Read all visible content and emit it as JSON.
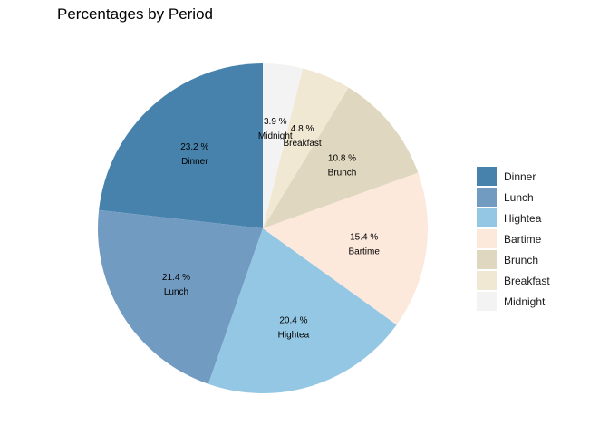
{
  "chart_data": {
    "type": "pie",
    "title": "Percentages by Period",
    "start": "top",
    "direction": "counterclockwise",
    "slices": [
      {
        "label": "Dinner",
        "percent": 23.2,
        "percent_label": "23.2 %",
        "color": "#4682ac"
      },
      {
        "label": "Lunch",
        "percent": 21.4,
        "percent_label": "21.4 %",
        "color": "#729bc2"
      },
      {
        "label": "Hightea",
        "percent": 20.4,
        "percent_label": "20.4 %",
        "color": "#93c7e3"
      },
      {
        "label": "Bartime",
        "percent": 15.4,
        "percent_label": "15.4 %",
        "color": "#fde9dc"
      },
      {
        "label": "Brunch",
        "percent": 10.8,
        "percent_label": "10.8 %",
        "color": "#dfd7bf"
      },
      {
        "label": "Breakfast",
        "percent": 4.8,
        "percent_label": "4.8 %",
        "color": "#f1e8d3"
      },
      {
        "label": "Midnight",
        "percent": 3.9,
        "percent_label": "3.9 %",
        "color": "#f3f3f3"
      }
    ],
    "legend": {
      "position": "right",
      "entries": [
        "Dinner",
        "Lunch",
        "Hightea",
        "Bartime",
        "Brunch",
        "Breakfast",
        "Midnight"
      ]
    }
  }
}
